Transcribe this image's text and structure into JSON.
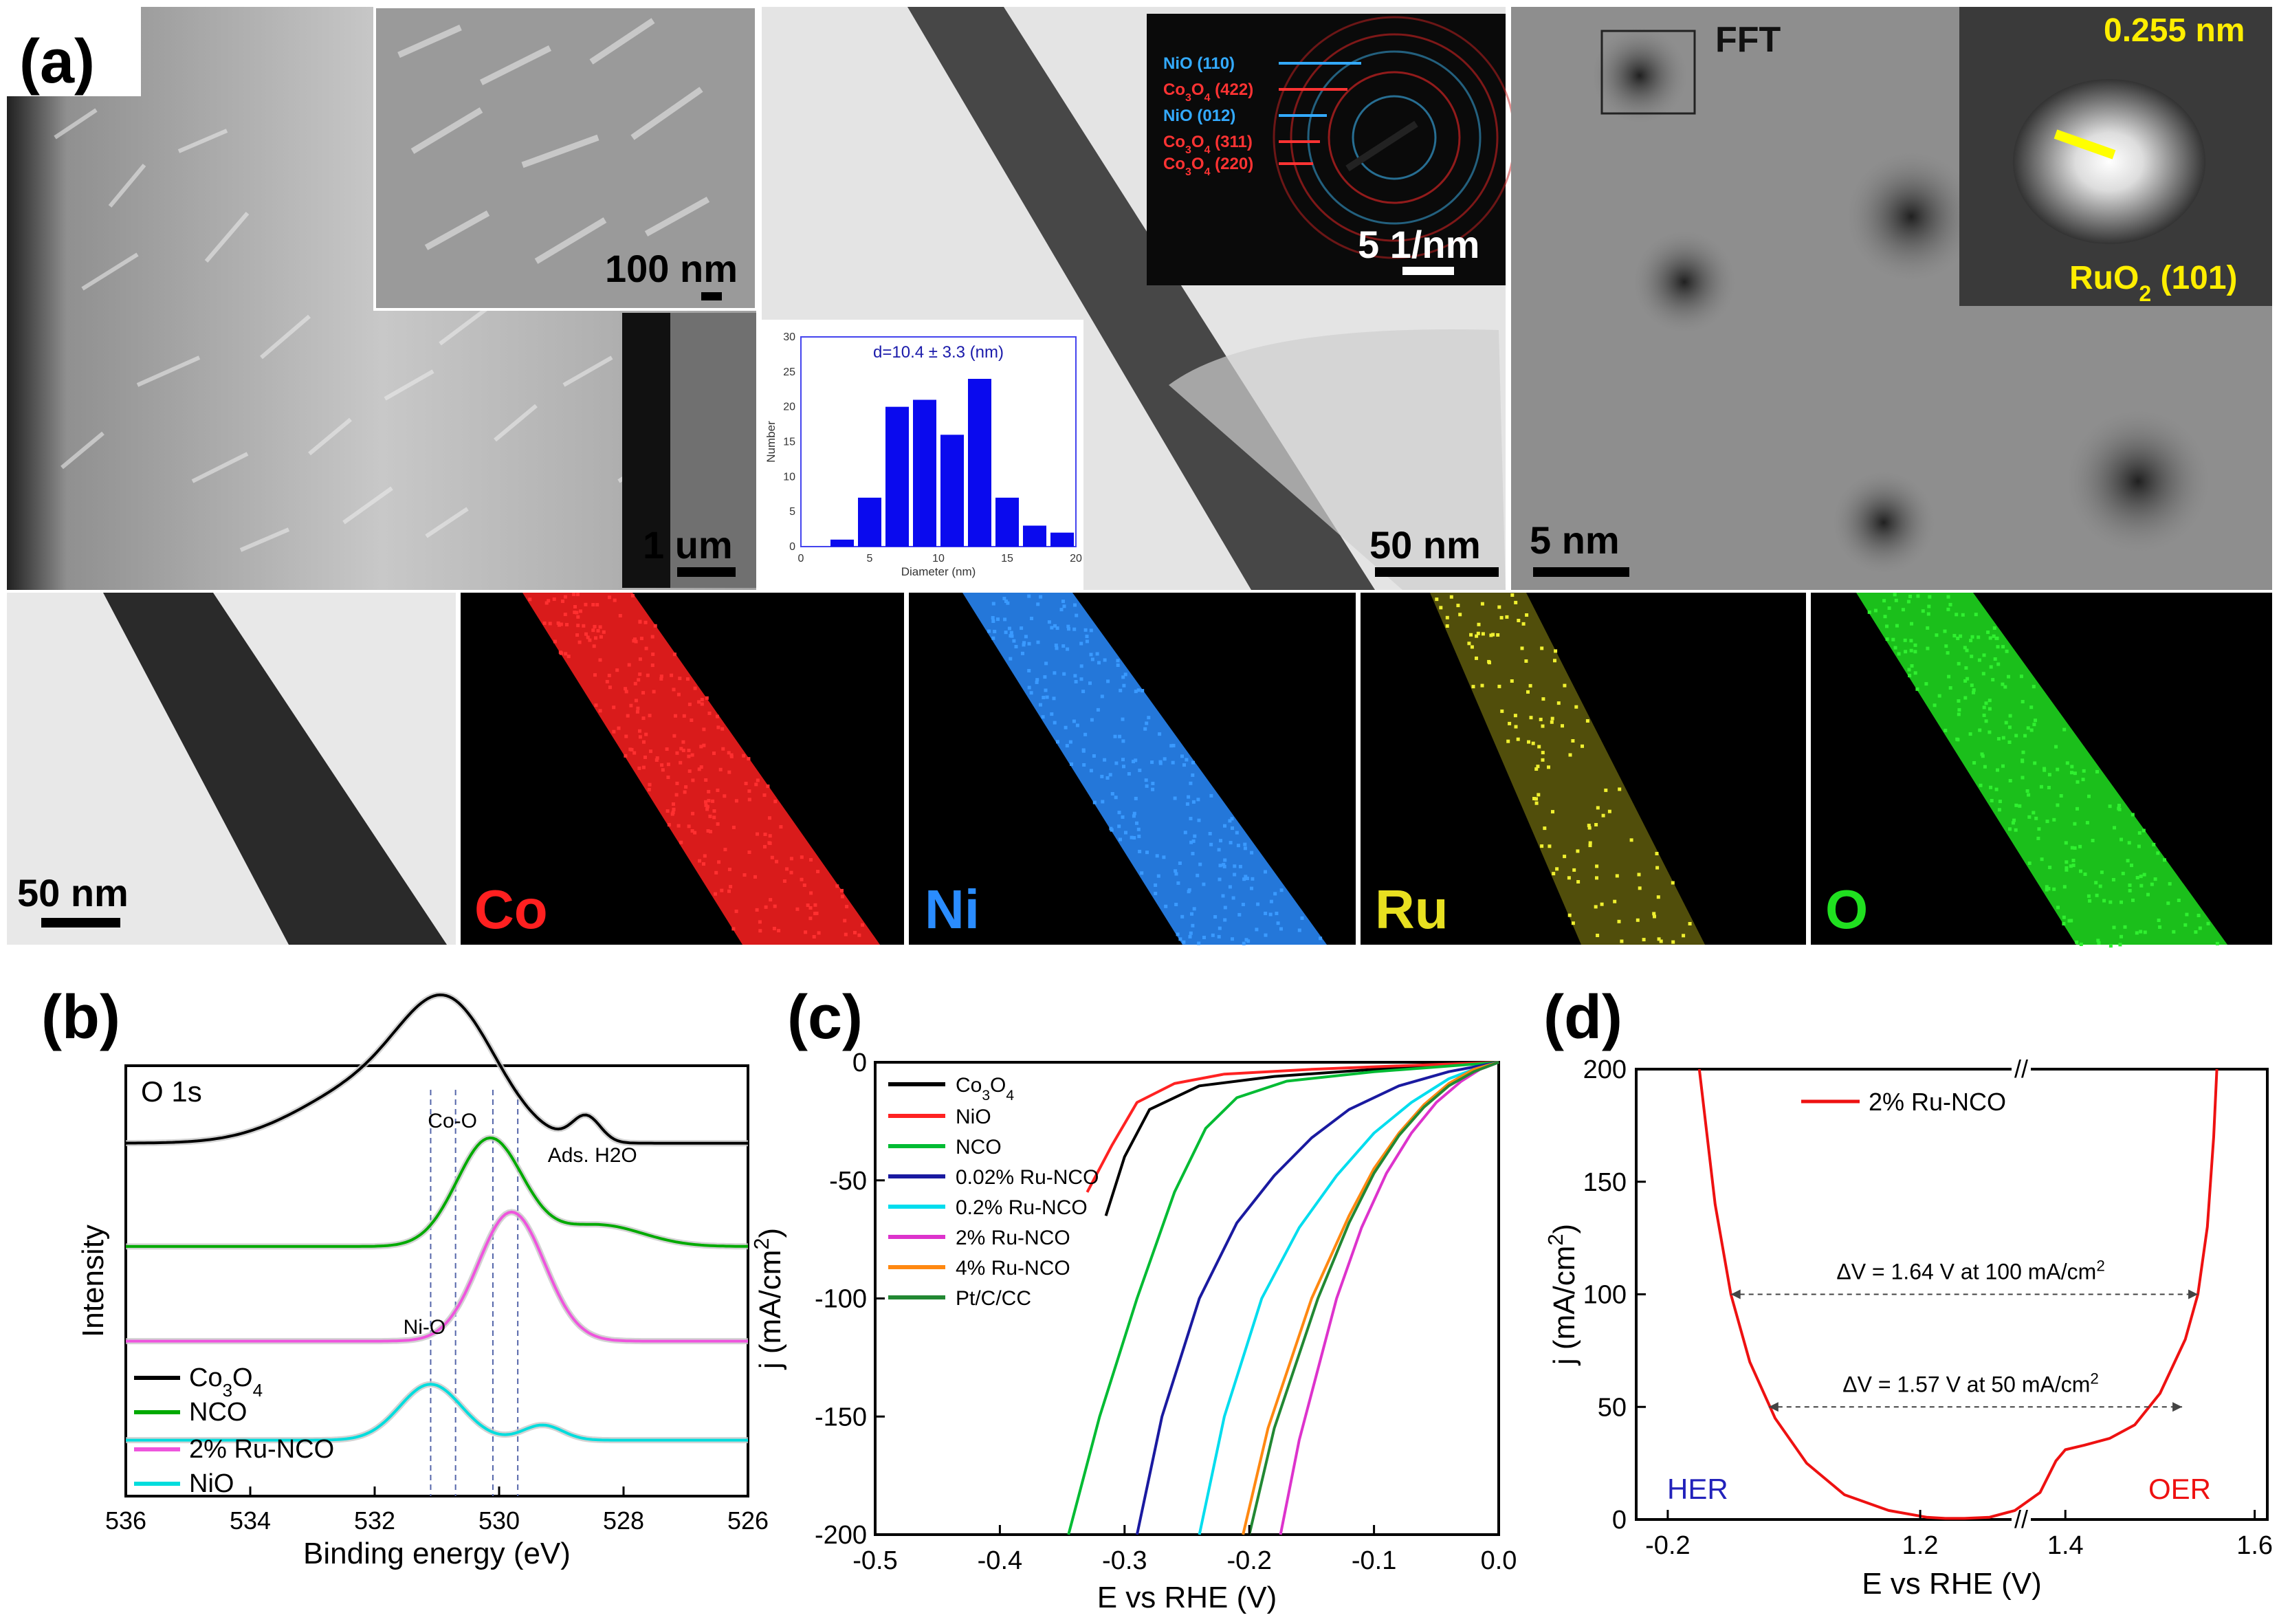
{
  "figure": {
    "panel_labels": [
      "(a)",
      "(b)",
      "(c)",
      "(d)"
    ]
  },
  "micrographs": {
    "sem": {
      "scale_inset": "100 nm",
      "scale_main": "1 um"
    },
    "saed": {
      "rings": [
        "NiO (110)",
        "Co3O4 (422)",
        "NiO (012)",
        "Co3O4 (311)",
        "Co3O4 (220)"
      ],
      "scale": "5 1/nm"
    },
    "tem": {
      "scale": "50 nm"
    },
    "hrtem": {
      "fft_label": "FFT",
      "scale": "5 nm",
      "d_spacing": "0.255 nm",
      "plane": "RuO2 (101)"
    },
    "eds": {
      "scale": "50 nm",
      "elements": [
        "Co",
        "Ni",
        "Ru",
        "O"
      ],
      "colors": [
        "#ff2020",
        "#2a8cff",
        "#e8e020",
        "#20e020"
      ]
    }
  },
  "chart_data": [
    {
      "id": "hist",
      "type": "bar",
      "title": "d=10.4 ± 3.3 (nm)",
      "xlabel": "Diameter (nm)",
      "ylabel": "Number",
      "x": [
        3,
        5,
        7,
        9,
        11,
        13,
        15,
        17,
        19
      ],
      "values": [
        1,
        7,
        20,
        21,
        16,
        24,
        7,
        3,
        2
      ],
      "xlim": [
        0,
        20
      ],
      "ylim": [
        0,
        30
      ],
      "xticks": [
        0,
        5,
        10,
        15,
        20
      ],
      "yticks": [
        0,
        5,
        10,
        15,
        20,
        25,
        30
      ],
      "color": "#0a0aee"
    },
    {
      "id": "b",
      "type": "line",
      "title": "O 1s",
      "xlabel": "Binding energy (eV)",
      "ylabel": "Intensity",
      "xlim": [
        536,
        526
      ],
      "xticks": [
        536,
        534,
        532,
        530,
        528,
        526
      ],
      "annotations": [
        "Co-O",
        "Ads. H2O",
        "Ni-O"
      ],
      "dashed_lines_ev": [
        531.1,
        530.7,
        530.1,
        529.7
      ],
      "series": [
        {
          "name": "Co3O4",
          "color": "#000000",
          "baseline": 0.82,
          "peaks": [
            [
              530.8,
              1.1,
              0.29
            ],
            [
              532.2,
              1.5,
              0.12
            ],
            [
              528.6,
              0.32,
              0.06
            ]
          ]
        },
        {
          "name": "NCO",
          "color": "#00aa00",
          "baseline": 0.58,
          "peaks": [
            [
              530.15,
              0.75,
              0.25
            ],
            [
              528.4,
              1.0,
              0.05
            ]
          ]
        },
        {
          "name": "2% Ru-NCO",
          "color": "#ee55dd",
          "baseline": 0.36,
          "peaks": [
            [
              529.8,
              0.75,
              0.3
            ]
          ]
        },
        {
          "name": "NiO",
          "color": "#00dddd",
          "baseline": 0.13,
          "peaks": [
            [
              531.1,
              0.7,
              0.13
            ],
            [
              529.3,
              0.45,
              0.035
            ]
          ]
        }
      ]
    },
    {
      "id": "c",
      "type": "line",
      "xlabel": "E vs RHE (V)",
      "ylabel": "j (mA/cm2)",
      "xlim": [
        -0.5,
        0.0
      ],
      "ylim": [
        -200,
        0
      ],
      "xticks": [
        -0.5,
        -0.4,
        -0.3,
        -0.2,
        -0.1,
        0.0
      ],
      "xticklabels": [
        "-0.5",
        "-0.4",
        "-0.3",
        "-0.2",
        "-0.1",
        "0.0"
      ],
      "yticks": [
        0,
        -50,
        -100,
        -150,
        -200
      ],
      "series": [
        {
          "name": "Co3O4",
          "color": "#000000",
          "x": [
            -0.315,
            -0.3,
            -0.28,
            -0.24,
            -0.18,
            -0.1,
            -0.05,
            0.0
          ],
          "y": [
            -65,
            -40,
            -20,
            -10,
            -6,
            -3,
            -1.5,
            0
          ]
        },
        {
          "name": "NiO",
          "color": "#ff2222",
          "x": [
            -0.33,
            -0.31,
            -0.29,
            -0.26,
            -0.22,
            -0.15,
            -0.08,
            0.0
          ],
          "y": [
            -55,
            -35,
            -17,
            -9,
            -5,
            -3,
            -1.5,
            0
          ]
        },
        {
          "name": "NCO",
          "color": "#00bb33",
          "x": [
            -0.345,
            -0.32,
            -0.29,
            -0.26,
            -0.235,
            -0.21,
            -0.17,
            -0.1,
            -0.05,
            0.0
          ],
          "y": [
            -200,
            -150,
            -100,
            -55,
            -28,
            -15,
            -8,
            -4,
            -2,
            0
          ]
        },
        {
          "name": "0.02% Ru-NCO",
          "color": "#1a1aa0",
          "x": [
            -0.29,
            -0.27,
            -0.24,
            -0.21,
            -0.18,
            -0.15,
            -0.12,
            -0.08,
            -0.04,
            0.0
          ],
          "y": [
            -200,
            -150,
            -100,
            -68,
            -48,
            -32,
            -20,
            -10,
            -4,
            0
          ]
        },
        {
          "name": "0.2% Ru-NCO",
          "color": "#00ddee",
          "x": [
            -0.24,
            -0.22,
            -0.19,
            -0.16,
            -0.13,
            -0.1,
            -0.07,
            -0.04,
            -0.02,
            0.0
          ],
          "y": [
            -200,
            -150,
            -100,
            -70,
            -48,
            -30,
            -17,
            -7,
            -3,
            0
          ]
        },
        {
          "name": "2% Ru-NCO",
          "color": "#dd33cc",
          "x": [
            -0.175,
            -0.16,
            -0.13,
            -0.11,
            -0.09,
            -0.07,
            -0.05,
            -0.03,
            -0.015,
            0.0
          ],
          "y": [
            -200,
            -160,
            -100,
            -70,
            -47,
            -30,
            -17,
            -8,
            -3,
            0
          ]
        },
        {
          "name": "4% Ru-NCO",
          "color": "#ff8811",
          "x": [
            -0.205,
            -0.185,
            -0.15,
            -0.12,
            -0.1,
            -0.08,
            -0.06,
            -0.04,
            -0.02,
            0.0
          ],
          "y": [
            -200,
            -155,
            -100,
            -65,
            -45,
            -30,
            -18,
            -9,
            -3,
            0
          ]
        },
        {
          "name": "Pt/C/CC",
          "color": "#228833",
          "x": [
            -0.2,
            -0.18,
            -0.145,
            -0.12,
            -0.1,
            -0.08,
            -0.06,
            -0.04,
            -0.02,
            0.0
          ],
          "y": [
            -200,
            -155,
            -100,
            -68,
            -47,
            -31,
            -19,
            -10,
            -4,
            0
          ]
        }
      ]
    },
    {
      "id": "d",
      "type": "line",
      "xlabel": "E vs RHE (V)",
      "ylabel": "j (mA/cm2)",
      "ylim": [
        0,
        200
      ],
      "xticks": [
        -0.2,
        1.2,
        1.4,
        1.6
      ],
      "xticklabels": [
        "-0.2",
        "1.2",
        "1.4",
        "1.6"
      ],
      "yticks": [
        0,
        50,
        100,
        150,
        200
      ],
      "axis_break": "//",
      "legend": "2% Ru-NCO",
      "annotations": [
        "ΔV = 1.64 V at 100 mA/cm2",
        "ΔV = 1.57 V at 50 mA/cm2",
        "HER",
        "OER"
      ],
      "series": [
        {
          "name": "2% Ru-NCO",
          "color": "#ee1111",
          "u": [
            0.1,
            0.125,
            0.15,
            0.18,
            0.22,
            0.27,
            0.33,
            0.4,
            0.46,
            0.49,
            0.52,
            0.56,
            0.6,
            0.64,
            0.665,
            0.68,
            0.71,
            0.75,
            0.79,
            0.83,
            0.87,
            0.89,
            0.905,
            0.915,
            0.92
          ],
          "j": [
            200,
            140,
            100,
            70,
            45,
            25,
            11,
            4,
            1,
            0.5,
            0.5,
            1,
            4,
            12,
            26,
            31,
            33,
            36,
            42,
            56,
            80,
            100,
            130,
            170,
            200
          ]
        }
      ]
    }
  ]
}
